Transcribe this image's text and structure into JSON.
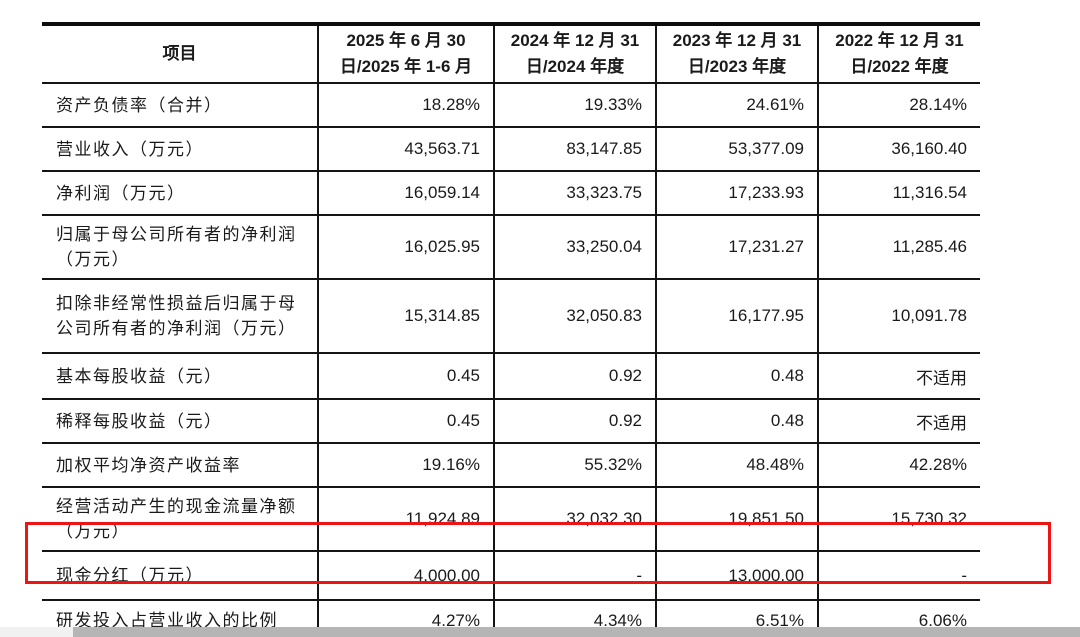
{
  "table": {
    "columns": [
      "项目",
      "2025 年 6 月 30 日/2025 年 1-6 月",
      "2024 年 12 月 31 日/2024 年度",
      "2023 年 12 月 31 日/2023 年度",
      "2022 年 12 月 31 日/2022 年度"
    ],
    "rows": [
      {
        "label": "资产负债率（合并）",
        "values": [
          "18.28%",
          "19.33%",
          "24.61%",
          "28.14%"
        ],
        "highlighted": false
      },
      {
        "label": "营业收入（万元）",
        "values": [
          "43,563.71",
          "83,147.85",
          "53,377.09",
          "36,160.40"
        ],
        "highlighted": false
      },
      {
        "label": "净利润（万元）",
        "values": [
          "16,059.14",
          "33,323.75",
          "17,233.93",
          "11,316.54"
        ],
        "highlighted": false
      },
      {
        "label": "归属于母公司所有者的净利润（万元）",
        "values": [
          "16,025.95",
          "33,250.04",
          "17,231.27",
          "11,285.46"
        ],
        "highlighted": false
      },
      {
        "label": "扣除非经常性损益后归属于母公司所有者的净利润（万元）",
        "values": [
          "15,314.85",
          "32,050.83",
          "16,177.95",
          "10,091.78"
        ],
        "highlighted": false
      },
      {
        "label": "基本每股收益（元）",
        "values": [
          "0.45",
          "0.92",
          "0.48",
          "不适用"
        ],
        "highlighted": false
      },
      {
        "label": "稀释每股收益（元）",
        "values": [
          "0.45",
          "0.92",
          "0.48",
          "不适用"
        ],
        "highlighted": false
      },
      {
        "label": "加权平均净资产收益率",
        "values": [
          "19.16%",
          "55.32%",
          "48.48%",
          "42.28%"
        ],
        "highlighted": false
      },
      {
        "label": "经营活动产生的现金流量净额（万元）",
        "values": [
          "11,924.89",
          "32,032.30",
          "19,851.50",
          "15,730.32"
        ],
        "highlighted": false
      },
      {
        "label": "现金分红（万元）",
        "values": [
          "4,000.00",
          "-",
          "13,000.00",
          "-"
        ],
        "highlighted": true
      },
      {
        "label": "研发投入占营业收入的比例",
        "values": [
          "4.27%",
          "4.34%",
          "6.51%",
          "6.06%"
        ],
        "highlighted": false
      }
    ]
  },
  "annotation": {
    "highlight_border_color": "#ec1515",
    "highlighted_row_label": "现金分红（万元）"
  },
  "scrollbar": {
    "track_color": "#f1f1f1",
    "thumb_color": "#b5b5b5"
  },
  "colors": {
    "text": "#1a1a1a",
    "table_border": "#141414",
    "background": "#ffffff"
  }
}
